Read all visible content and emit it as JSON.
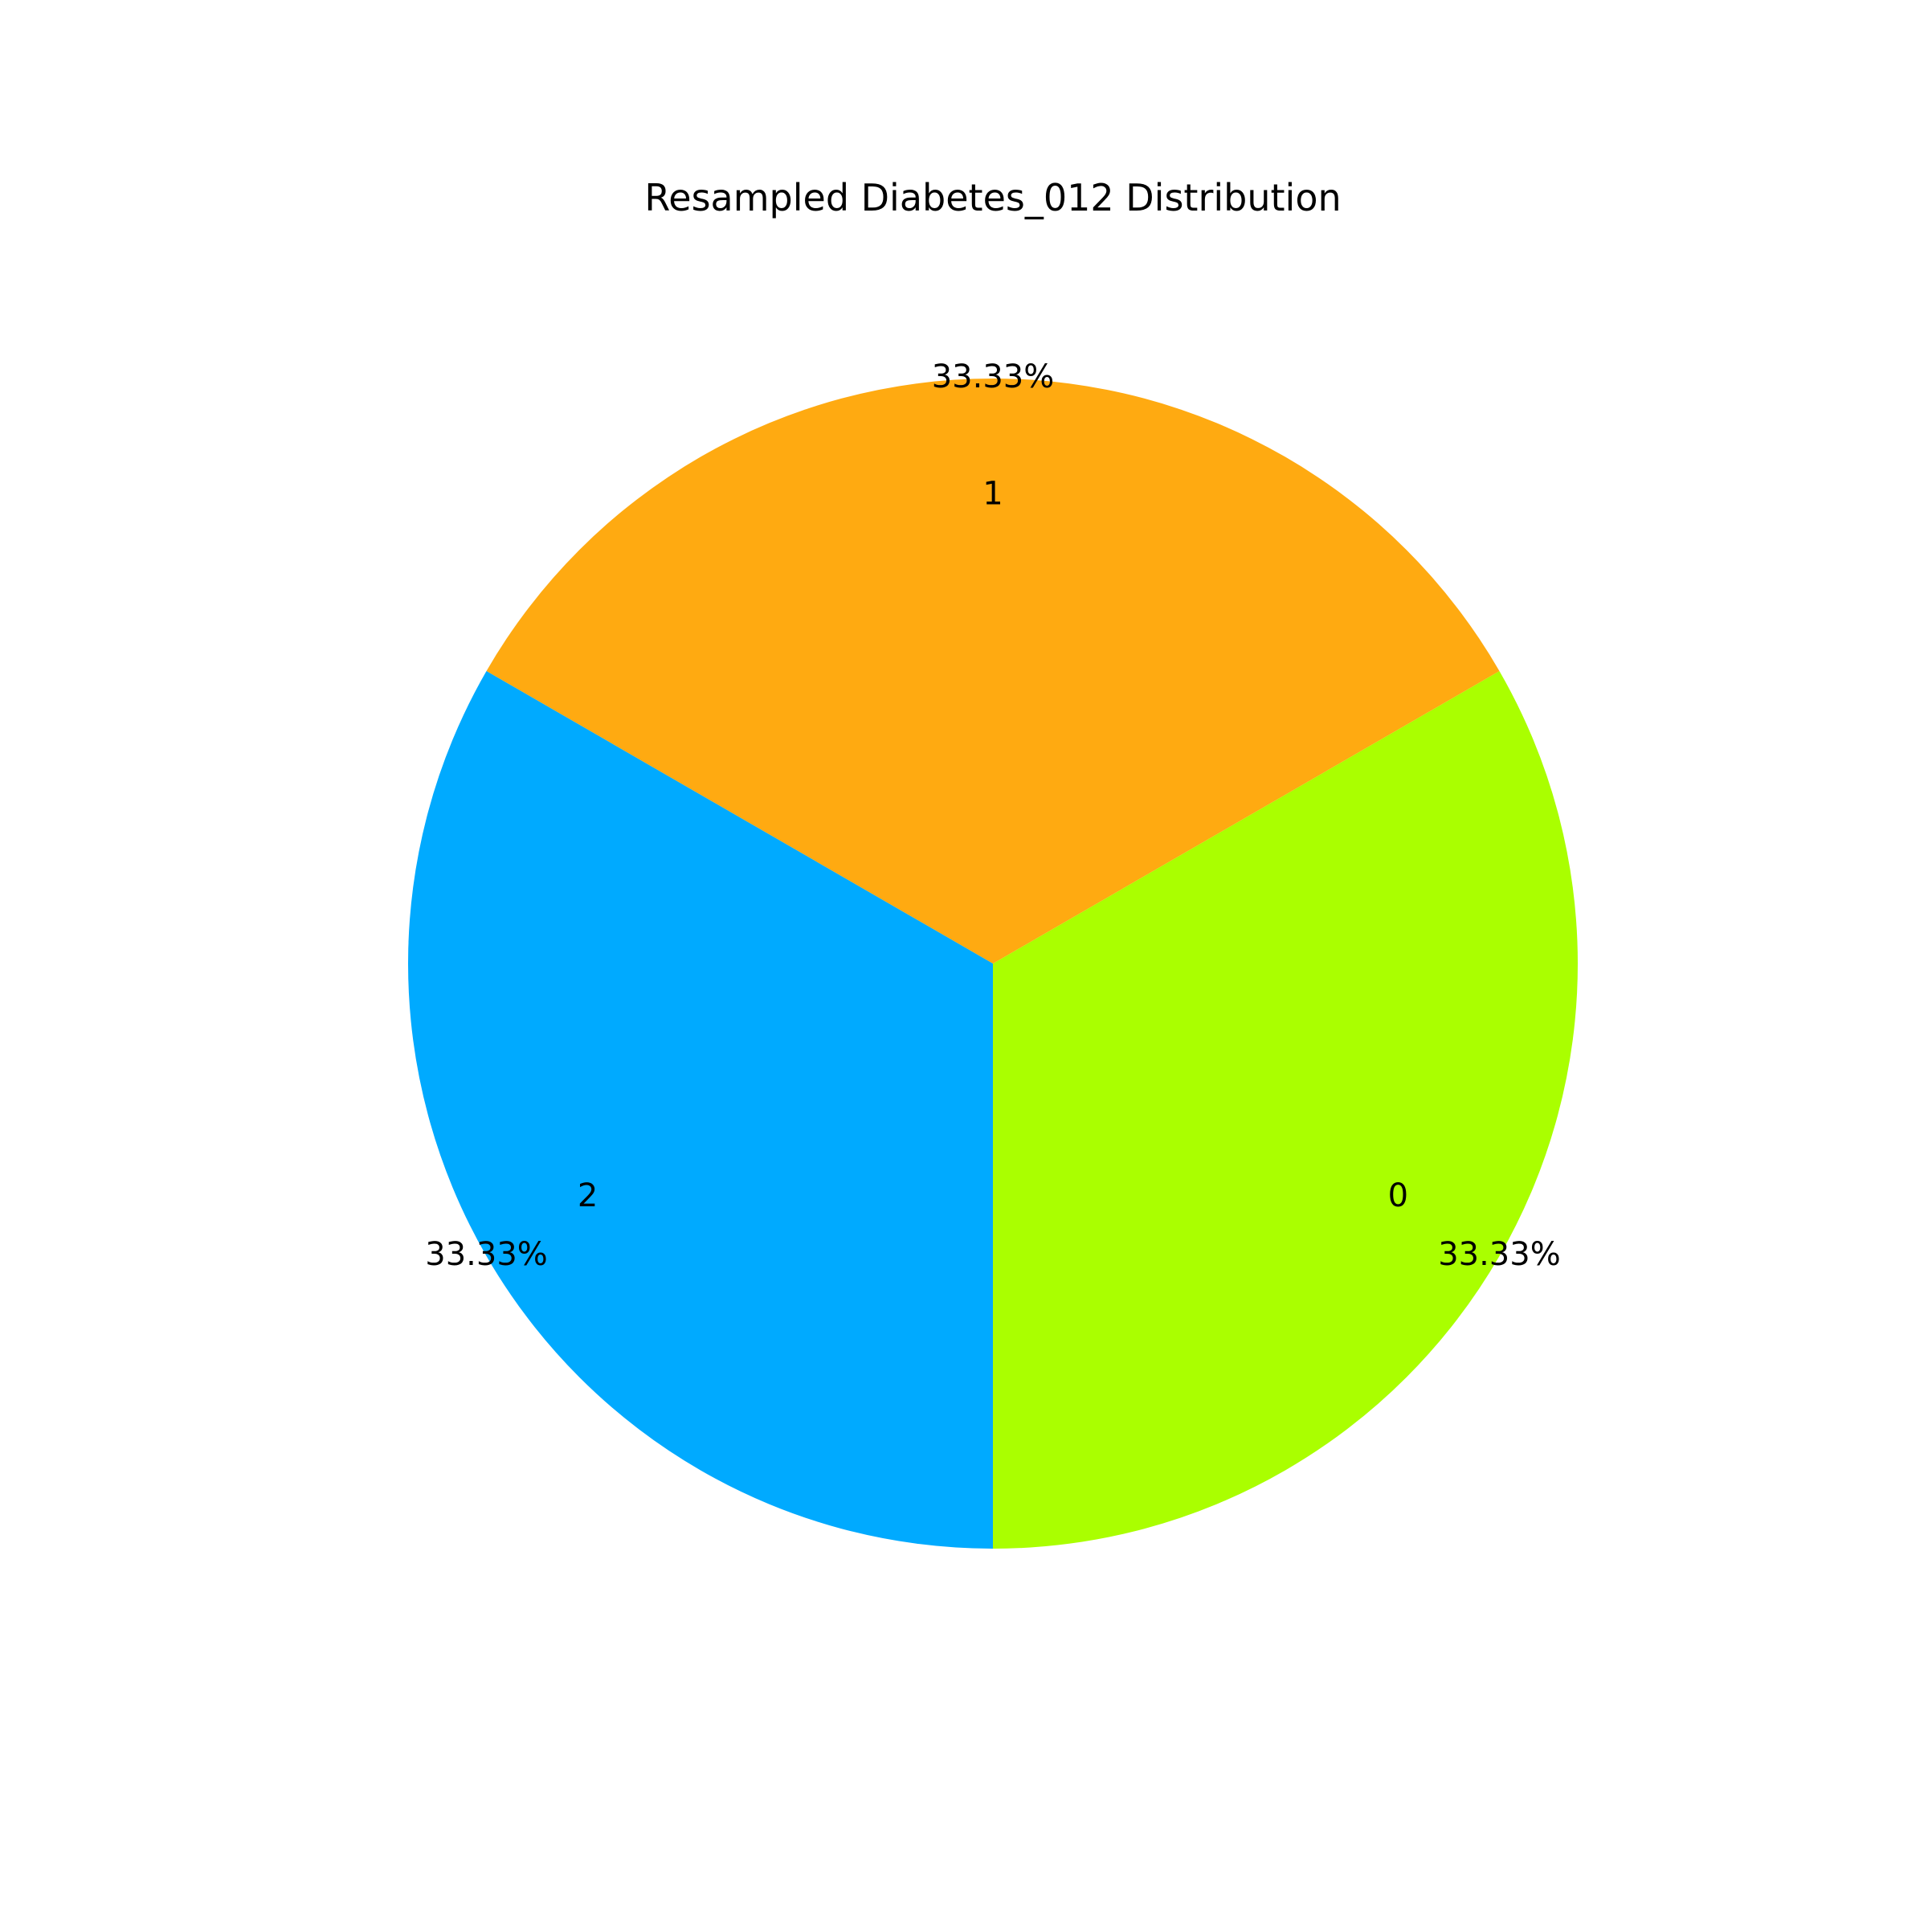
{
  "chart_data": {
    "type": "pie",
    "title": "Resampled Diabetes_012 Distribution",
    "slices": [
      {
        "label": "0",
        "value": 33.33,
        "pct_label": "33.33%",
        "color": "#aaff00"
      },
      {
        "label": "1",
        "value": 33.33,
        "pct_label": "33.33%",
        "color": "#ffaa11"
      },
      {
        "label": "2",
        "value": 33.33,
        "pct_label": "33.33%",
        "color": "#00aaff"
      }
    ],
    "start_angle_deg": 270,
    "direction": "counterclockwise",
    "legend": "none",
    "grid": false
  }
}
